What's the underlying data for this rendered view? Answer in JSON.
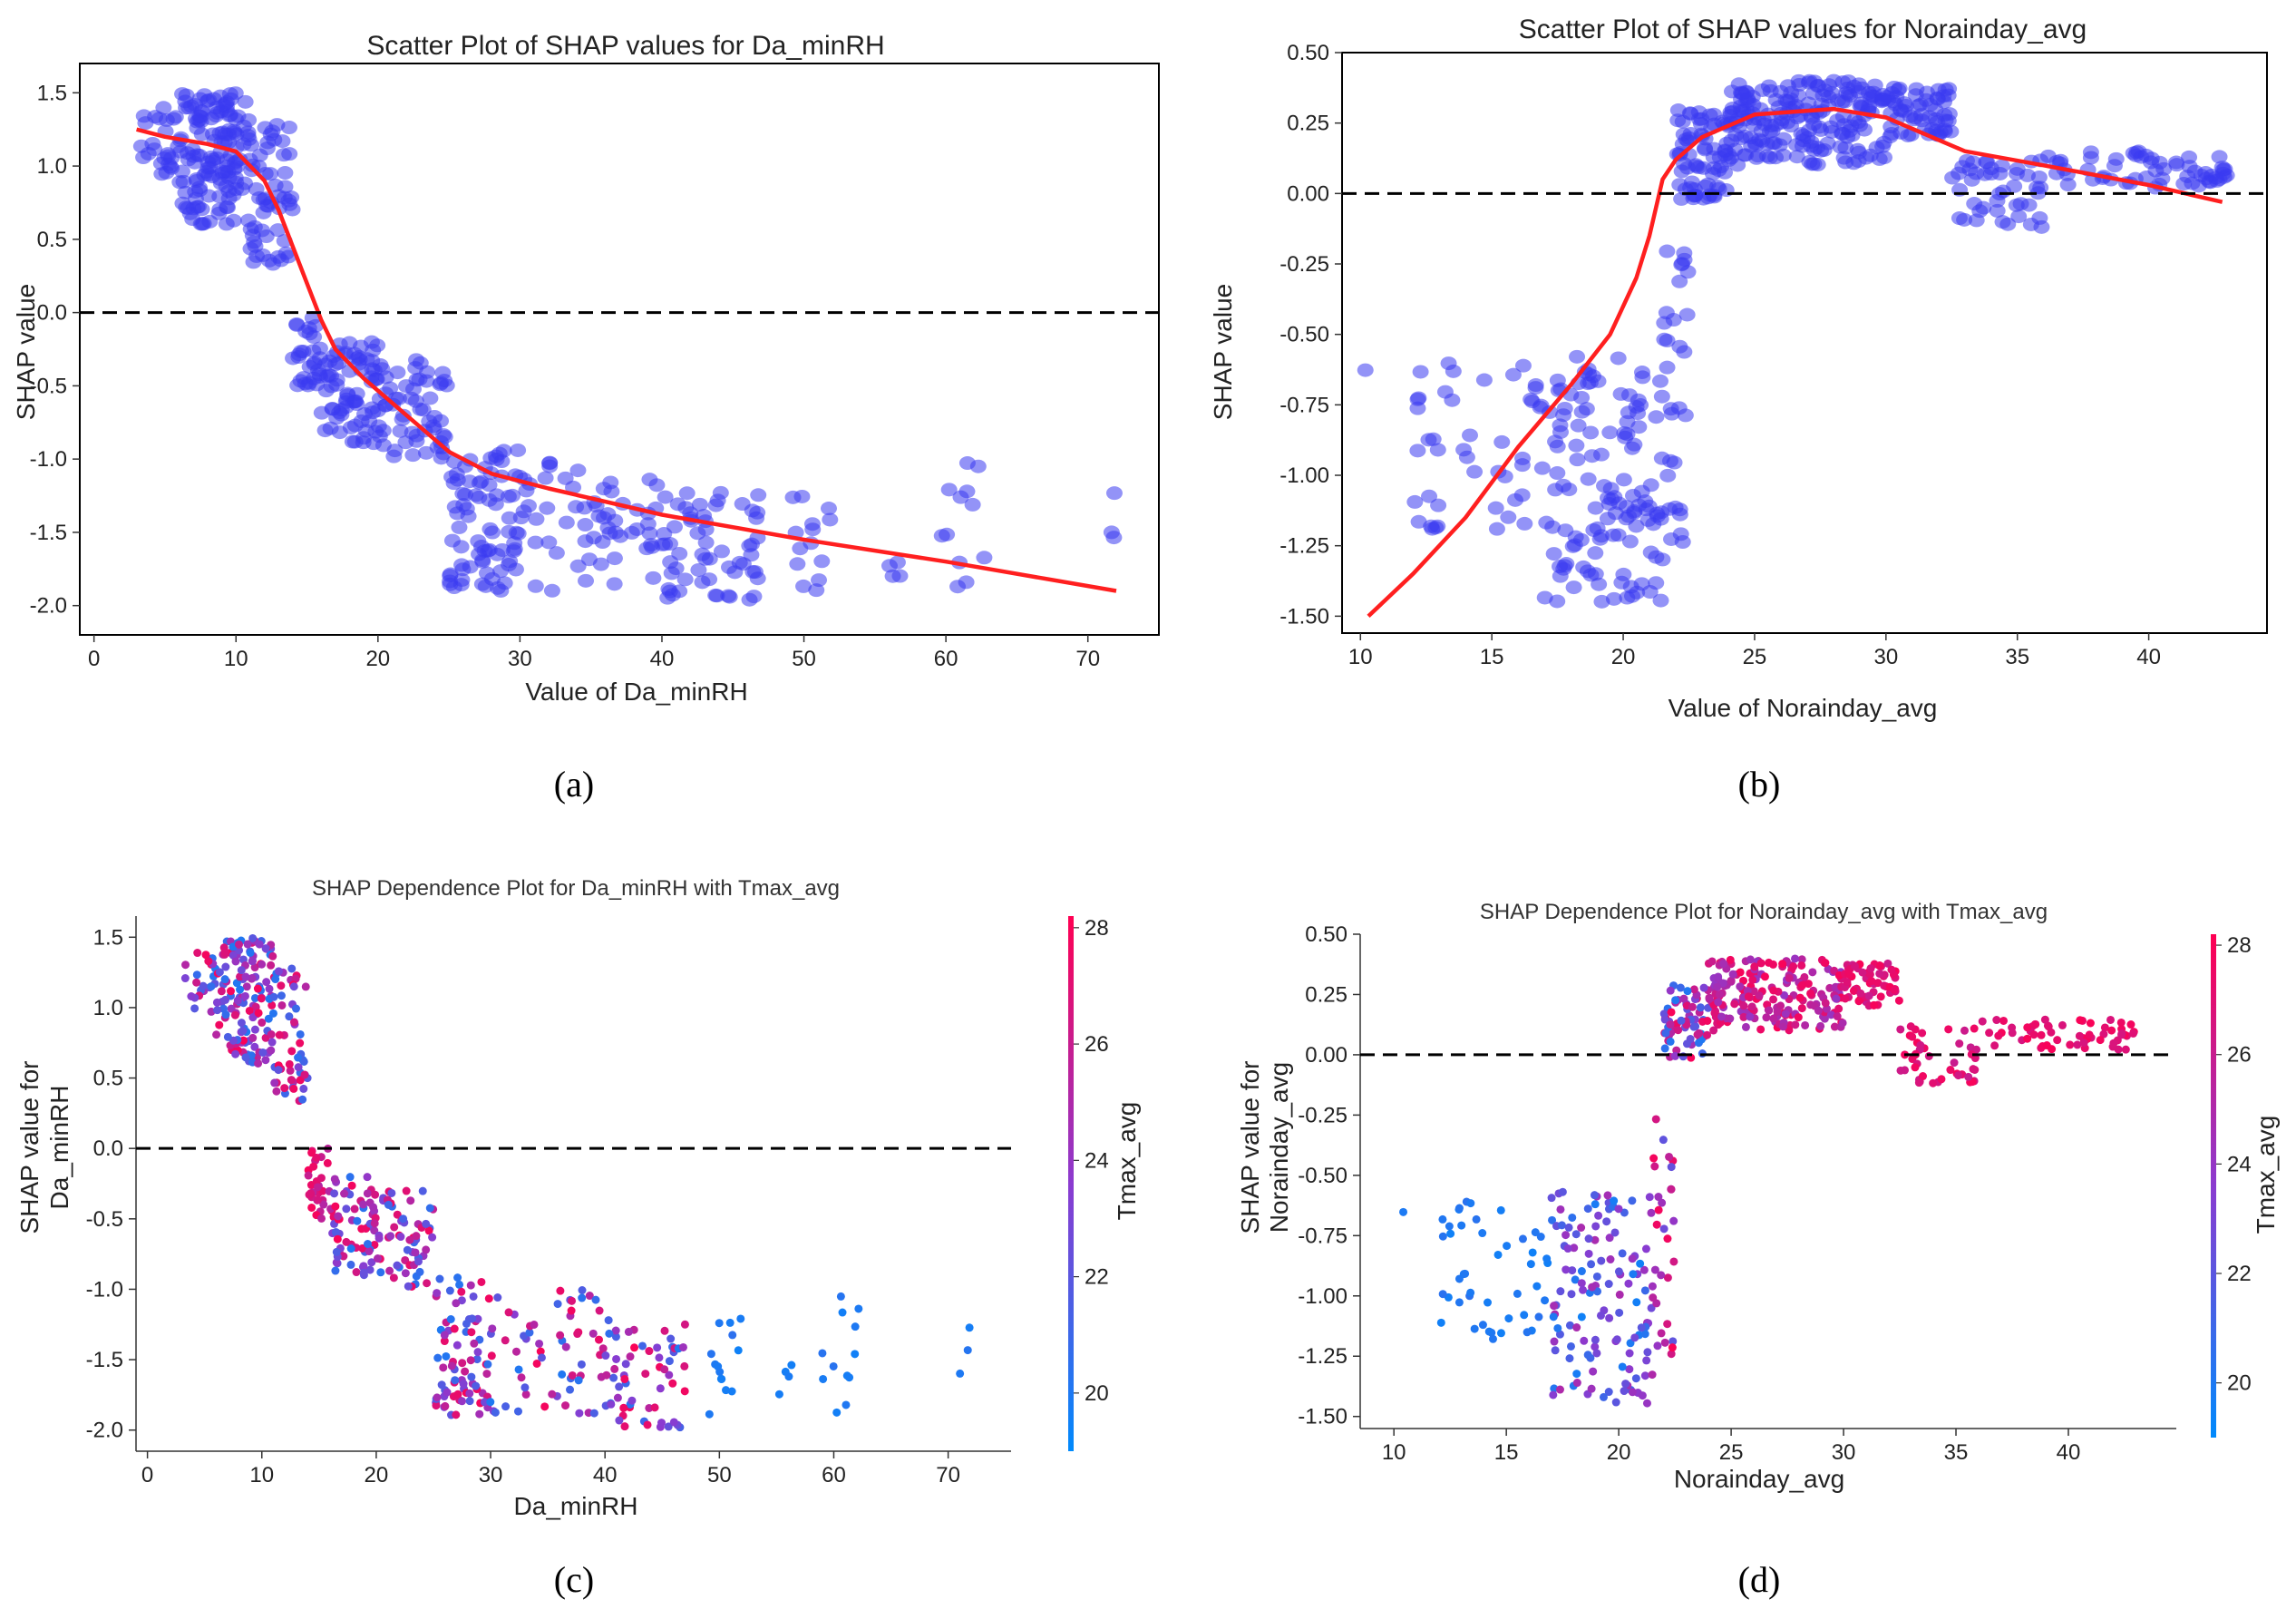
{
  "figure": {
    "panel_labels": [
      "(a)",
      "(b)",
      "(c)",
      "(d)"
    ]
  },
  "colors": {
    "scatter_point": "#3a3af0",
    "trend_line": "#ff1f1f",
    "zero_line": "#000000",
    "colormap_low": "#008afc",
    "colormap_mid": "#8b3bd0",
    "colormap_high": "#ff0052"
  },
  "chart_data": [
    {
      "id": "a",
      "type": "scatter",
      "title": "Scatter Plot of SHAP values for Da_minRH",
      "xlabel": "Value of Da_minRH",
      "ylabel": "SHAP value",
      "xlim": [
        -1,
        75
      ],
      "ylim": [
        -2.2,
        1.7
      ],
      "xticks": [
        0,
        10,
        20,
        30,
        40,
        50,
        60,
        70
      ],
      "yticks": [
        -2.0,
        -1.5,
        -1.0,
        -0.5,
        0.0,
        0.5,
        1.0,
        1.5
      ],
      "ytick_labels": [
        "-2.0",
        "-1.5",
        "-1.0",
        "-0.5",
        "0.0",
        "0.5",
        "1.0",
        "1.5"
      ],
      "zero_line": 0,
      "point_clusters": [
        {
          "x": [
            3,
            6
          ],
          "y": [
            0.9,
            1.4
          ],
          "n": 25
        },
        {
          "x": [
            6,
            11
          ],
          "y": [
            0.6,
            1.5
          ],
          "n": 140
        },
        {
          "x": [
            11,
            14
          ],
          "y": [
            0.3,
            1.3
          ],
          "n": 55
        },
        {
          "x": [
            14,
            16
          ],
          "y": [
            -0.5,
            0.0
          ],
          "n": 30
        },
        {
          "x": [
            16,
            20
          ],
          "y": [
            -0.9,
            -0.2
          ],
          "n": 70
        },
        {
          "x": [
            20,
            25
          ],
          "y": [
            -1.0,
            -0.3
          ],
          "n": 60
        },
        {
          "x": [
            25,
            30
          ],
          "y": [
            -1.9,
            -0.9
          ],
          "n": 80
        },
        {
          "x": [
            30,
            40
          ],
          "y": [
            -1.9,
            -1.0
          ],
          "n": 60
        },
        {
          "x": [
            40,
            47
          ],
          "y": [
            -2.0,
            -1.2
          ],
          "n": 60
        },
        {
          "x": [
            49,
            52
          ],
          "y": [
            -1.9,
            -1.2
          ],
          "n": 14
        },
        {
          "x": [
            55,
            57
          ],
          "y": [
            -1.8,
            -1.5
          ],
          "n": 4
        },
        {
          "x": [
            59,
            63
          ],
          "y": [
            -1.9,
            -1.0
          ],
          "n": 12
        },
        {
          "x": [
            71,
            72
          ],
          "y": [
            -1.6,
            -1.2
          ],
          "n": 3
        }
      ],
      "trend": {
        "x": [
          3,
          5,
          8,
          10,
          12,
          13,
          14,
          15,
          16,
          17,
          19,
          22,
          25,
          28,
          32,
          40,
          50,
          60,
          72
        ],
        "y": [
          1.25,
          1.2,
          1.15,
          1.1,
          0.9,
          0.7,
          0.45,
          0.2,
          -0.05,
          -0.25,
          -0.45,
          -0.7,
          -0.95,
          -1.1,
          -1.2,
          -1.38,
          -1.55,
          -1.7,
          -1.9
        ]
      }
    },
    {
      "id": "b",
      "type": "scatter",
      "title": "Scatter Plot of SHAP values for Norainday_avg",
      "xlabel": "Value of Norainday_avg",
      "ylabel": "SHAP value",
      "xlim": [
        9.3,
        44.5
      ],
      "ylim": [
        -1.56,
        0.5
      ],
      "xticks": [
        10,
        15,
        20,
        25,
        30,
        35,
        40
      ],
      "yticks": [
        -1.5,
        -1.25,
        -1.0,
        -0.75,
        -0.5,
        -0.25,
        0.0,
        0.25,
        0.5
      ],
      "ytick_labels": [
        "-1.50",
        "-1.25",
        "-1.00",
        "-0.75",
        "-0.50",
        "-0.25",
        "0.00",
        "0.25",
        "0.50"
      ],
      "zero_line": 0,
      "point_clusters": [
        {
          "x": [
            10,
            11
          ],
          "y": [
            -0.66,
            -0.6
          ],
          "n": 1
        },
        {
          "x": [
            12,
            17
          ],
          "y": [
            -1.2,
            -0.6
          ],
          "n": 45
        },
        {
          "x": [
            17,
            21.5
          ],
          "y": [
            -1.45,
            -0.55
          ],
          "n": 130
        },
        {
          "x": [
            21.5,
            22.5
          ],
          "y": [
            -1.25,
            -0.2
          ],
          "n": 30
        },
        {
          "x": [
            22,
            24
          ],
          "y": [
            -0.02,
            0.3
          ],
          "n": 70
        },
        {
          "x": [
            24,
            30
          ],
          "y": [
            0.1,
            0.4
          ],
          "n": 200
        },
        {
          "x": [
            30,
            32.5
          ],
          "y": [
            0.2,
            0.38
          ],
          "n": 60
        },
        {
          "x": [
            32.5,
            36
          ],
          "y": [
            -0.12,
            0.12
          ],
          "n": 45
        },
        {
          "x": [
            36,
            43
          ],
          "y": [
            0.02,
            0.15
          ],
          "n": 60
        }
      ],
      "trend": {
        "x": [
          10.3,
          12,
          14,
          16,
          18,
          19.5,
          20.5,
          21,
          21.5,
          22,
          23,
          25,
          28,
          30,
          33,
          36,
          40,
          42.8
        ],
        "y": [
          -1.5,
          -1.35,
          -1.15,
          -0.9,
          -0.68,
          -0.5,
          -0.3,
          -0.15,
          0.05,
          0.12,
          0.2,
          0.28,
          0.3,
          0.27,
          0.15,
          0.1,
          0.03,
          -0.03
        ]
      }
    },
    {
      "id": "c",
      "type": "scatter",
      "title": "SHAP Dependence Plot for Da_minRH with Tmax_avg",
      "xlabel": "Da_minRH",
      "ylabel": "SHAP value for\nDa_minRH",
      "ylabel_lines": [
        "SHAP value for",
        "Da_minRH"
      ],
      "xlim": [
        -1,
        75.5
      ],
      "ylim": [
        -2.15,
        1.65
      ],
      "xticks": [
        0,
        10,
        20,
        30,
        40,
        50,
        60,
        70
      ],
      "yticks": [
        -2.0,
        -1.5,
        -1.0,
        -0.5,
        0.0,
        0.5,
        1.0,
        1.5
      ],
      "ytick_labels": [
        "-2.0",
        "-1.5",
        "-1.0",
        "-0.5",
        "0.0",
        "0.5",
        "1.0",
        "1.5"
      ],
      "zero_line": 0,
      "colorbar": {
        "label": "Tmax_avg",
        "range": [
          19,
          28.2
        ],
        "ticks": [
          20,
          22,
          24,
          26,
          28
        ]
      },
      "point_clusters": [
        {
          "x": [
            3,
            6
          ],
          "y": [
            0.9,
            1.4
          ],
          "n": 25,
          "color": [
            20,
            28
          ]
        },
        {
          "x": [
            6,
            11
          ],
          "y": [
            0.6,
            1.5
          ],
          "n": 140,
          "color": [
            20,
            28
          ]
        },
        {
          "x": [
            11,
            14
          ],
          "y": [
            0.3,
            1.3
          ],
          "n": 55,
          "color": [
            20,
            28
          ]
        },
        {
          "x": [
            14,
            16
          ],
          "y": [
            -0.5,
            0.0
          ],
          "n": 30,
          "color": [
            25,
            28
          ]
        },
        {
          "x": [
            16,
            20
          ],
          "y": [
            -0.9,
            -0.2
          ],
          "n": 70,
          "color": [
            20,
            28
          ]
        },
        {
          "x": [
            20,
            25
          ],
          "y": [
            -1.0,
            -0.3
          ],
          "n": 60,
          "color": [
            20,
            28
          ]
        },
        {
          "x": [
            25,
            30
          ],
          "y": [
            -1.9,
            -0.9
          ],
          "n": 80,
          "color": [
            20,
            28
          ]
        },
        {
          "x": [
            30,
            40
          ],
          "y": [
            -1.9,
            -1.0
          ],
          "n": 60,
          "color": [
            20,
            28
          ]
        },
        {
          "x": [
            40,
            47
          ],
          "y": [
            -2.0,
            -1.2
          ],
          "n": 60,
          "color": [
            20,
            28
          ]
        },
        {
          "x": [
            49,
            52
          ],
          "y": [
            -1.9,
            -1.2
          ],
          "n": 14,
          "color": [
            19.5,
            20.5
          ]
        },
        {
          "x": [
            55,
            57
          ],
          "y": [
            -1.8,
            -1.5
          ],
          "n": 4,
          "color": [
            19.5,
            20.5
          ]
        },
        {
          "x": [
            59,
            63
          ],
          "y": [
            -1.9,
            -1.0
          ],
          "n": 12,
          "color": [
            19.5,
            20.5
          ]
        },
        {
          "x": [
            71,
            72
          ],
          "y": [
            -1.6,
            -1.2
          ],
          "n": 3,
          "color": [
            19.5,
            20.5
          ]
        }
      ]
    },
    {
      "id": "d",
      "type": "scatter",
      "title": "SHAP Dependence Plot for Norainday_avg with Tmax_avg",
      "xlabel": "Norainday_avg",
      "ylabel": "SHAP value for\nNorainday_avg",
      "ylabel_lines": [
        "SHAP value for",
        "Norainday_avg"
      ],
      "xlim": [
        8.5,
        44.8
      ],
      "ylim": [
        -1.55,
        0.5
      ],
      "xticks": [
        10,
        15,
        20,
        25,
        30,
        35,
        40
      ],
      "yticks": [
        -1.5,
        -1.25,
        -1.0,
        -0.75,
        -0.5,
        -0.25,
        0.0,
        0.25,
        0.5
      ],
      "ytick_labels": [
        "-1.50",
        "-1.25",
        "-1.00",
        "-0.75",
        "-0.50",
        "-0.25",
        "0.00",
        "0.25",
        "0.50"
      ],
      "zero_line": 0,
      "colorbar": {
        "label": "Tmax_avg",
        "range": [
          19,
          28.2
        ],
        "ticks": [
          20,
          22,
          24,
          26,
          28
        ]
      },
      "point_clusters": [
        {
          "x": [
            10,
            11
          ],
          "y": [
            -0.66,
            -0.6
          ],
          "n": 1,
          "color": [
            19.5,
            20
          ]
        },
        {
          "x": [
            12,
            17
          ],
          "y": [
            -1.2,
            -0.6
          ],
          "n": 45,
          "color": [
            19.5,
            20.5
          ]
        },
        {
          "x": [
            17,
            21.5
          ],
          "y": [
            -1.45,
            -0.55
          ],
          "n": 130,
          "color": [
            19.5,
            25
          ]
        },
        {
          "x": [
            21.5,
            22.5
          ],
          "y": [
            -1.25,
            -0.2
          ],
          "n": 30,
          "color": [
            22,
            28
          ]
        },
        {
          "x": [
            22,
            24
          ],
          "y": [
            -0.02,
            0.3
          ],
          "n": 70,
          "color": [
            20,
            28
          ]
        },
        {
          "x": [
            24,
            30
          ],
          "y": [
            0.1,
            0.4
          ],
          "n": 200,
          "color": [
            24,
            28
          ]
        },
        {
          "x": [
            30,
            32.5
          ],
          "y": [
            0.2,
            0.38
          ],
          "n": 60,
          "color": [
            26,
            28
          ]
        },
        {
          "x": [
            32.5,
            36
          ],
          "y": [
            -0.12,
            0.12
          ],
          "n": 45,
          "color": [
            26,
            28
          ]
        },
        {
          "x": [
            36,
            43
          ],
          "y": [
            0.02,
            0.15
          ],
          "n": 60,
          "color": [
            26.5,
            28
          ]
        }
      ]
    }
  ]
}
